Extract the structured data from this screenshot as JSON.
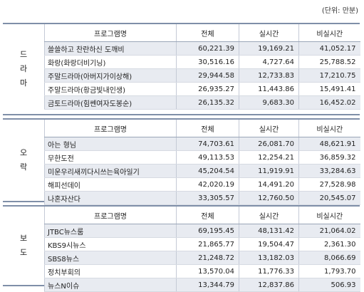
{
  "unit_note": "(단위: 만분)",
  "columns": {
    "name": "프로그램명",
    "total": "전체",
    "realtime": "실시간",
    "nonrealtime": "비실시간"
  },
  "sections": [
    {
      "label": [
        "드",
        "라",
        "마"
      ],
      "rows": [
        {
          "name": "쓸쓸하고 찬란하신 도깨비",
          "total": "60,221.39",
          "realtime": "19,169.21",
          "nonrealtime": "41,052.17"
        },
        {
          "name": "화랑(화랑더비기닝)",
          "total": "30,516.16",
          "realtime": "4,727.64",
          "nonrealtime": "25,788.52"
        },
        {
          "name": "주말드라마(아버지가이상해)",
          "total": "29,944.58",
          "realtime": "12,733.83",
          "nonrealtime": "17,210.75"
        },
        {
          "name": "주말드라마(황금빛내인생)",
          "total": "26,935.27",
          "realtime": "11,443.86",
          "nonrealtime": "15,491.41"
        },
        {
          "name": "금토드라마(힘쎈여자도봉순)",
          "total": "26,135.32",
          "realtime": "9,683.30",
          "nonrealtime": "16,452.02"
        }
      ]
    },
    {
      "label": [
        "오",
        "락"
      ],
      "rows": [
        {
          "name": "아는 형님",
          "total": "74,703.61",
          "realtime": "26,081.70",
          "nonrealtime": "48,621.91"
        },
        {
          "name": "무한도전",
          "total": "49,113.53",
          "realtime": "12,254.21",
          "nonrealtime": "36,859.32"
        },
        {
          "name": "미운우리새끼다시쓰는육아일기",
          "total": "45,204.54",
          "realtime": "11,919.91",
          "nonrealtime": "33,284.63"
        },
        {
          "name": "해피선데이",
          "total": "42,020.19",
          "realtime": "14,491.20",
          "nonrealtime": "27,528.98"
        },
        {
          "name": "나혼자산다",
          "total": "33,305.57",
          "realtime": "12,760.50",
          "nonrealtime": "20,545.07"
        }
      ]
    },
    {
      "label": [
        "보",
        "도"
      ],
      "rows": [
        {
          "name": "JTBC뉴스룸",
          "total": "69,195.45",
          "realtime": "48,131.42",
          "nonrealtime": "21,064.02"
        },
        {
          "name": "KBS9시뉴스",
          "total": "21,865.77",
          "realtime": "19,504.47",
          "nonrealtime": "2,361.30"
        },
        {
          "name": "SBS8뉴스",
          "total": "21,248.72",
          "realtime": "13,182.03",
          "nonrealtime": "8,066.69"
        },
        {
          "name": "정치부회의",
          "total": "13,570.04",
          "realtime": "11,776.33",
          "nonrealtime": "1,793.70"
        },
        {
          "name": "뉴스N이슈",
          "total": "13,344.79",
          "realtime": "12,837.86",
          "nonrealtime": "506.93"
        }
      ]
    }
  ]
}
